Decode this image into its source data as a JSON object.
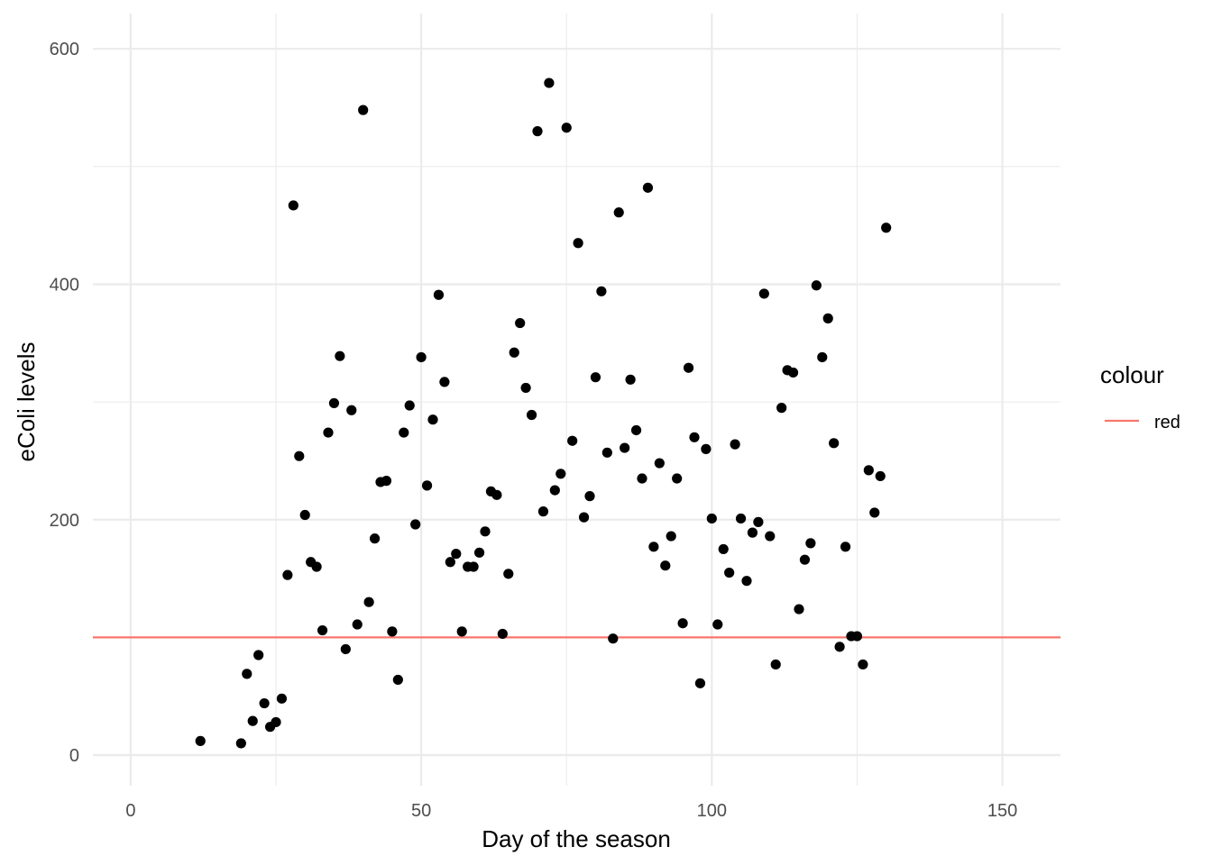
{
  "chart_data": {
    "type": "scatter",
    "xlabel": "Day of the season",
    "ylabel": "eColi levels",
    "xlim": [
      -6.5,
      160
    ],
    "ylim": [
      -26,
      630
    ],
    "x_ticks": [
      0,
      50,
      100,
      150
    ],
    "x_tick_labels": [
      "0",
      "50",
      "100",
      "150"
    ],
    "y_ticks": [
      0,
      200,
      400,
      600
    ],
    "y_tick_labels": [
      "0",
      "200",
      "400",
      "600"
    ],
    "grid": true,
    "point_color": "#000000",
    "reference_line": {
      "y": 100,
      "color": "#F8766D"
    },
    "legend": {
      "title": "colour",
      "entries": [
        "red"
      ],
      "position": "right"
    },
    "points": [
      [
        12,
        12
      ],
      [
        19,
        10
      ],
      [
        20,
        69
      ],
      [
        21,
        29
      ],
      [
        22,
        85
      ],
      [
        23,
        44
      ],
      [
        24,
        24
      ],
      [
        25,
        28
      ],
      [
        26,
        48
      ],
      [
        27,
        153
      ],
      [
        28,
        467
      ],
      [
        29,
        254
      ],
      [
        30,
        204
      ],
      [
        31,
        164
      ],
      [
        32,
        160
      ],
      [
        33,
        106
      ],
      [
        34,
        274
      ],
      [
        35,
        299
      ],
      [
        36,
        339
      ],
      [
        37,
        90
      ],
      [
        38,
        293
      ],
      [
        39,
        111
      ],
      [
        40,
        548
      ],
      [
        41,
        130
      ],
      [
        42,
        184
      ],
      [
        43,
        232
      ],
      [
        44,
        233
      ],
      [
        45,
        105
      ],
      [
        46,
        64
      ],
      [
        47,
        274
      ],
      [
        48,
        297
      ],
      [
        49,
        196
      ],
      [
        50,
        338
      ],
      [
        51,
        229
      ],
      [
        52,
        285
      ],
      [
        53,
        391
      ],
      [
        54,
        317
      ],
      [
        55,
        164
      ],
      [
        56,
        171
      ],
      [
        57,
        105
      ],
      [
        58,
        160
      ],
      [
        59,
        160
      ],
      [
        60,
        172
      ],
      [
        61,
        190
      ],
      [
        62,
        224
      ],
      [
        63,
        221
      ],
      [
        64,
        103
      ],
      [
        65,
        154
      ],
      [
        66,
        342
      ],
      [
        67,
        367
      ],
      [
        68,
        312
      ],
      [
        69,
        289
      ],
      [
        70,
        530
      ],
      [
        71,
        207
      ],
      [
        72,
        571
      ],
      [
        73,
        225
      ],
      [
        74,
        239
      ],
      [
        75,
        533
      ],
      [
        76,
        267
      ],
      [
        77,
        435
      ],
      [
        78,
        202
      ],
      [
        79,
        220
      ],
      [
        80,
        321
      ],
      [
        81,
        394
      ],
      [
        82,
        257
      ],
      [
        83,
        99
      ],
      [
        84,
        461
      ],
      [
        85,
        261
      ],
      [
        86,
        319
      ],
      [
        87,
        276
      ],
      [
        88,
        235
      ],
      [
        89,
        482
      ],
      [
        90,
        177
      ],
      [
        91,
        248
      ],
      [
        92,
        161
      ],
      [
        93,
        186
      ],
      [
        94,
        235
      ],
      [
        95,
        112
      ],
      [
        96,
        329
      ],
      [
        97,
        270
      ],
      [
        98,
        61
      ],
      [
        99,
        260
      ],
      [
        100,
        201
      ],
      [
        101,
        111
      ],
      [
        102,
        175
      ],
      [
        103,
        155
      ],
      [
        104,
        264
      ],
      [
        105,
        201
      ],
      [
        106,
        148
      ],
      [
        107,
        189
      ],
      [
        108,
        198
      ],
      [
        109,
        392
      ],
      [
        110,
        186
      ],
      [
        111,
        77
      ],
      [
        112,
        295
      ],
      [
        113,
        327
      ],
      [
        114,
        325
      ],
      [
        115,
        124
      ],
      [
        116,
        166
      ],
      [
        117,
        180
      ],
      [
        118,
        399
      ],
      [
        119,
        338
      ],
      [
        120,
        371
      ],
      [
        121,
        265
      ],
      [
        122,
        92
      ],
      [
        123,
        177
      ],
      [
        124,
        101
      ],
      [
        125,
        101
      ],
      [
        126,
        77
      ],
      [
        127,
        242
      ],
      [
        128,
        206
      ],
      [
        129,
        237
      ],
      [
        130,
        448
      ]
    ]
  }
}
